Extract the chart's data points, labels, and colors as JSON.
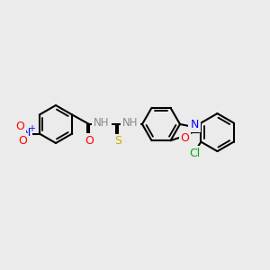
{
  "bg_color": "#ebebeb",
  "bond_color": "#000000",
  "bond_width": 1.5,
  "atom_colors": {
    "N": "#0000ff",
    "O": "#ff0000",
    "S": "#ccaa00",
    "Cl": "#00aa00",
    "N_blue": "#0000ff",
    "O_red": "#ff0000",
    "H_gray": "#888888"
  },
  "font_size": 8.5
}
